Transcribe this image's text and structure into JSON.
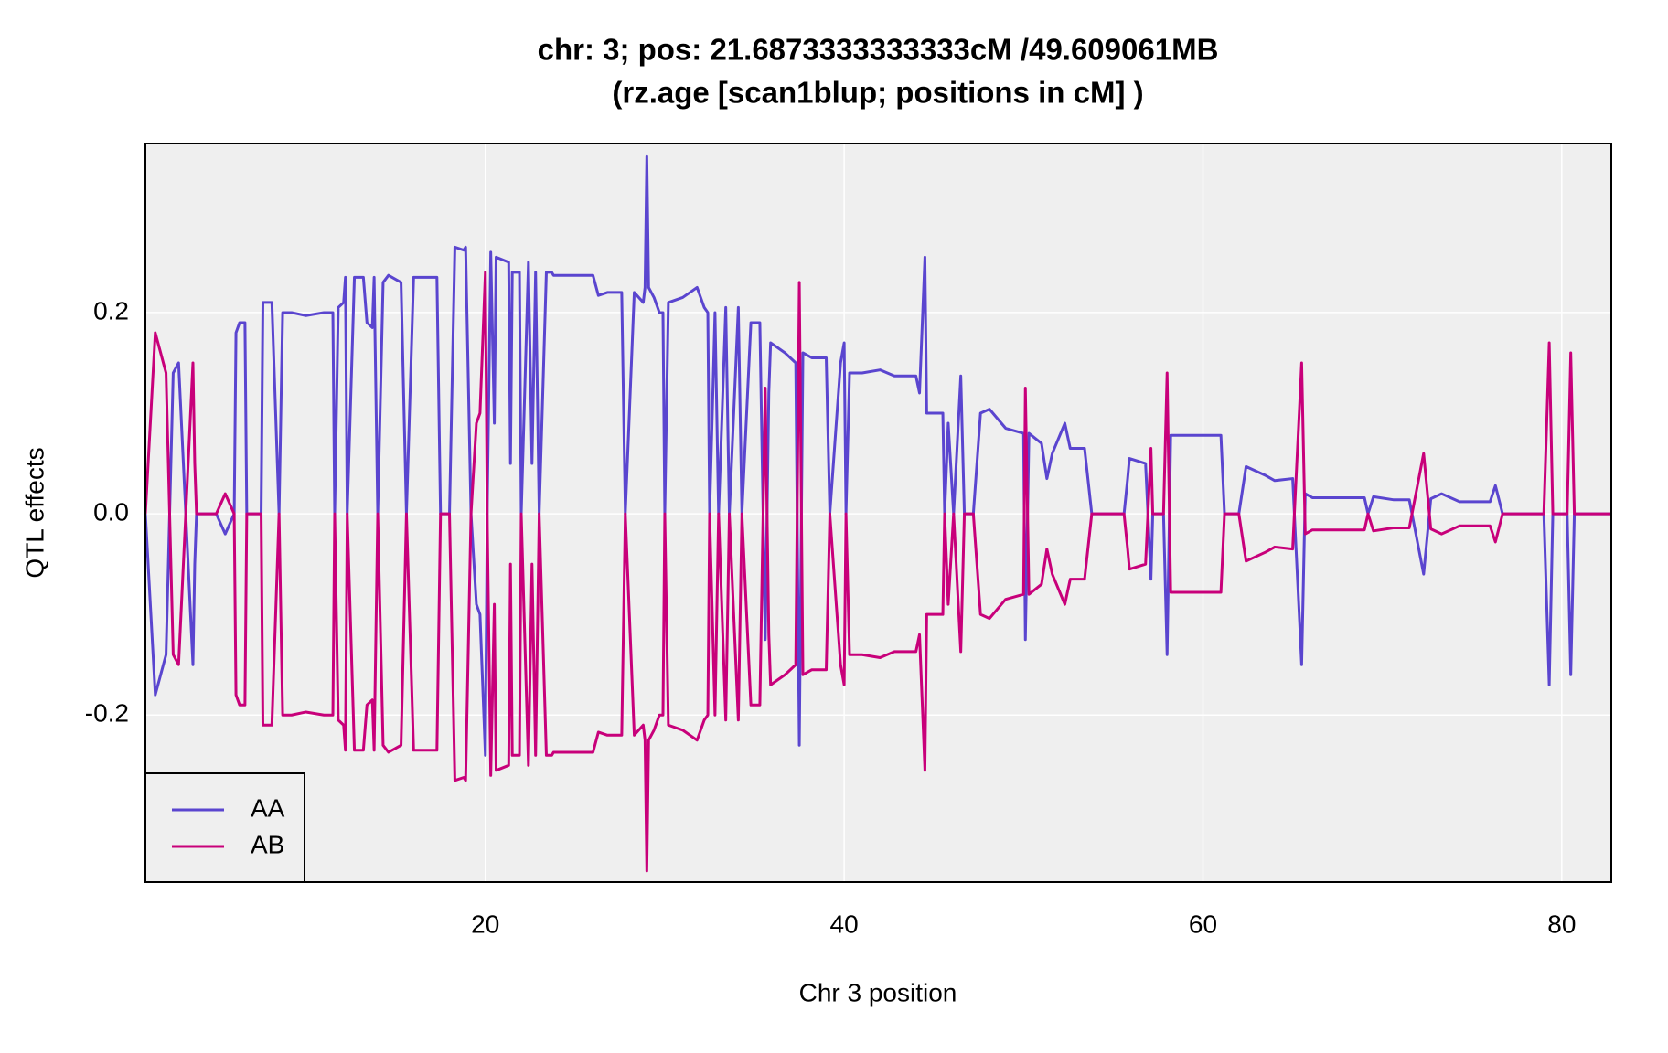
{
  "chart_data": {
    "type": "line",
    "title": "chr: 3; pos: 21.6873333333333cM /49.609061MB",
    "subtitle": "(rz.age [scan1blup; positions in cM] )",
    "xlabel": "Chr 3 position",
    "ylabel": "QTL effects",
    "xlim": [
      1.05,
      82.76
    ],
    "ylim": [
      -0.366,
      0.368
    ],
    "xticks": [
      20,
      40,
      60,
      80
    ],
    "yticks": [
      {
        "value": -0.2,
        "label": "-0.2"
      },
      {
        "value": 0,
        "label": "0.0"
      },
      {
        "value": 0.2,
        "label": "0.2"
      }
    ],
    "grid": true,
    "legend": "bottom-left",
    "x": [
      1.05,
      1.6,
      2.2,
      2.6,
      2.9,
      3.7,
      3.8,
      3.9,
      5.0,
      5.5,
      6.0,
      6.1,
      6.3,
      6.6,
      6.7,
      7.5,
      7.6,
      8.1,
      8.5,
      8.7,
      9.2,
      10.0,
      11.0,
      11.5,
      11.6,
      11.8,
      12.1,
      12.2,
      12.3,
      12.7,
      13.2,
      13.4,
      13.7,
      13.8,
      14.0,
      14.3,
      14.6,
      15.3,
      15.6,
      16.0,
      17.3,
      17.5,
      18.0,
      18.3,
      18.8,
      18.9,
      19.2,
      19.5,
      19.7,
      20.0,
      20.1,
      20.3,
      20.5,
      20.6,
      21.3,
      21.4,
      21.5,
      21.9,
      22.0,
      22.4,
      22.6,
      22.8,
      23.0,
      23.4,
      23.7,
      23.8,
      26.0,
      26.3,
      26.8,
      27.6,
      27.8,
      28.3,
      28.8,
      28.9,
      29.0,
      29.1,
      29.4,
      29.7,
      29.9,
      30.0,
      30.2,
      31.0,
      31.8,
      32.2,
      32.4,
      32.5,
      32.8,
      33.0,
      33.4,
      33.6,
      34.1,
      34.3,
      34.8,
      35.3,
      35.6,
      35.8,
      35.9,
      36.7,
      37.3,
      37.5,
      37.7,
      38.2,
      39.0,
      39.2,
      39.8,
      40.0,
      40.1,
      40.3,
      41.0,
      42.0,
      42.8,
      44.0,
      44.2,
      44.5,
      44.6,
      45.5,
      45.6,
      45.8,
      46.1,
      46.5,
      46.7,
      47.2,
      47.6,
      48.1,
      49.0,
      50.0,
      50.1,
      50.3,
      51.0,
      51.3,
      51.6,
      52.3,
      52.6,
      53.4,
      53.8,
      55.6,
      55.8,
      55.9,
      56.8,
      57.1,
      57.2,
      57.8,
      58.0,
      58.2,
      61.0,
      61.2,
      62.0,
      62.4,
      63.5,
      64.0,
      65.0,
      65.5,
      65.7,
      66.1,
      69.0,
      69.2,
      69.5,
      70.6,
      71.5,
      72.3,
      72.7,
      73.3,
      74.3,
      76.0,
      76.3,
      76.7,
      77.0,
      79.0,
      79.3,
      79.5,
      80.3,
      80.5,
      80.7,
      82.76
    ],
    "series": [
      {
        "name": "AA",
        "color": "#5a45cf",
        "values": [
          0,
          -0.18,
          -0.14,
          0.14,
          0.15,
          -0.15,
          -0.05,
          0,
          0,
          -0.02,
          0,
          0.18,
          0.19,
          0.19,
          0,
          0,
          0.21,
          0.21,
          0,
          0.2,
          0.2,
          0.197,
          0.2,
          0.2,
          0,
          0.205,
          0.21,
          0.235,
          0,
          0.235,
          0.235,
          0.19,
          0.185,
          0.235,
          0,
          0.23,
          0.237,
          0.23,
          0,
          0.235,
          0.235,
          0,
          0,
          0.265,
          0.262,
          0.265,
          0,
          -0.09,
          -0.1,
          -0.24,
          0,
          0.26,
          0.09,
          0.255,
          0.25,
          0.05,
          0.24,
          0.24,
          0,
          0.25,
          0.05,
          0.24,
          0,
          0.24,
          0.24,
          0.237,
          0.237,
          0.217,
          0.22,
          0.22,
          0,
          0.22,
          0.21,
          0.225,
          0.355,
          0.225,
          0.215,
          0.2,
          0.2,
          0,
          0.21,
          0.215,
          0.225,
          0.205,
          0.2,
          0,
          0.2,
          0,
          0.205,
          0,
          0.205,
          0,
          0.19,
          0.19,
          -0.125,
          0.12,
          0.17,
          0.16,
          0.15,
          -0.23,
          0.16,
          0.155,
          0.155,
          0,
          0.15,
          0.17,
          0,
          0.14,
          0.14,
          0.143,
          0.137,
          0.137,
          0.12,
          0.255,
          0.1,
          0.1,
          0,
          0.09,
          0,
          0.137,
          0,
          0,
          0.1,
          0.104,
          0.085,
          0.08,
          -0.125,
          0.08,
          0.07,
          0.035,
          0.06,
          0.09,
          0.065,
          0.065,
          0,
          0,
          0.035,
          0.055,
          0.05,
          -0.065,
          0,
          0,
          -0.14,
          0.078,
          0.078,
          0,
          0,
          0.047,
          0.038,
          0.033,
          0.035,
          -0.15,
          0.02,
          0.016,
          0.016,
          0,
          0.017,
          0.014,
          0.014,
          -0.06,
          0.015,
          0.02,
          0.012,
          0.012,
          0.028,
          0,
          0,
          0,
          -0.17,
          0,
          0,
          -0.16,
          0,
          0
        ]
      },
      {
        "name": "AB",
        "color": "#c8007a",
        "values": [
          0,
          0.18,
          0.14,
          -0.14,
          -0.15,
          0.15,
          0.05,
          0,
          0,
          0.02,
          0,
          -0.18,
          -0.19,
          -0.19,
          0,
          0,
          -0.21,
          -0.21,
          0,
          -0.2,
          -0.2,
          -0.197,
          -0.2,
          -0.2,
          0,
          -0.205,
          -0.21,
          -0.235,
          0,
          -0.235,
          -0.235,
          -0.19,
          -0.185,
          -0.235,
          0,
          -0.23,
          -0.237,
          -0.23,
          0,
          -0.235,
          -0.235,
          0,
          0,
          -0.265,
          -0.262,
          -0.265,
          0,
          0.09,
          0.1,
          0.24,
          0,
          -0.26,
          -0.09,
          -0.255,
          -0.25,
          -0.05,
          -0.24,
          -0.24,
          0,
          -0.25,
          -0.05,
          -0.24,
          0,
          -0.24,
          -0.24,
          -0.237,
          -0.237,
          -0.217,
          -0.22,
          -0.22,
          0,
          -0.22,
          -0.21,
          -0.225,
          -0.355,
          -0.225,
          -0.215,
          -0.2,
          -0.2,
          0,
          -0.21,
          -0.215,
          -0.225,
          -0.205,
          -0.2,
          0,
          -0.2,
          0,
          -0.205,
          0,
          -0.205,
          0,
          -0.19,
          -0.19,
          0.125,
          -0.12,
          -0.17,
          -0.16,
          -0.15,
          0.23,
          -0.16,
          -0.155,
          -0.155,
          0,
          -0.15,
          -0.17,
          0,
          -0.14,
          -0.14,
          -0.143,
          -0.137,
          -0.137,
          -0.12,
          -0.255,
          -0.1,
          -0.1,
          0,
          -0.09,
          0,
          -0.137,
          0,
          0,
          -0.1,
          -0.104,
          -0.085,
          -0.08,
          0.125,
          -0.08,
          -0.07,
          -0.035,
          -0.06,
          -0.09,
          -0.065,
          -0.065,
          0,
          0,
          -0.035,
          -0.055,
          -0.05,
          0.065,
          0,
          0,
          0.14,
          -0.078,
          -0.078,
          0,
          0,
          -0.047,
          -0.038,
          -0.033,
          -0.035,
          0.15,
          -0.02,
          -0.016,
          -0.016,
          0,
          -0.017,
          -0.014,
          -0.014,
          0.06,
          -0.015,
          -0.02,
          -0.012,
          -0.012,
          -0.028,
          0,
          0,
          0,
          0.17,
          0,
          0,
          0.16,
          0,
          0
        ]
      }
    ]
  }
}
